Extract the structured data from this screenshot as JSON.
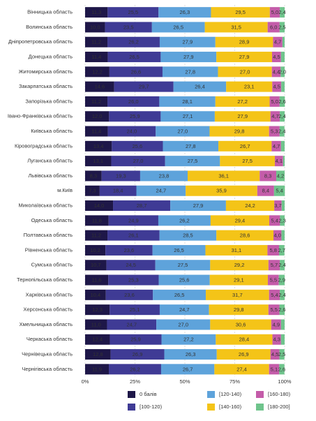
{
  "chart_data": {
    "type": "stacked-barh",
    "categories": [
      "Вінницька область",
      "Волинська область",
      "Дніпропетровська область",
      "Донецька область",
      "Житомирська область",
      "Закарпатська область",
      "Запорізька область",
      "Івано-Франківська область",
      "Київська область",
      "Кіровоградська область",
      "Луганська область",
      "Львівська область",
      "м.Київ",
      "Миколаївська область",
      "Одеська область",
      "Полтавська область",
      "Рівненська область",
      "Сумська область",
      "Тернопільська область",
      "Харківська область",
      "Херсонська область",
      "Хмельницька область",
      "Черкаська область",
      "Чернівецька область",
      "Чернігівська область"
    ],
    "series": [
      {
        "name": "0 балів",
        "color": "#1e1748",
        "values": [
          11.3,
          10.0,
          11.2,
          11.4,
          12.2,
          14.6,
          11.2,
          12.0,
          11.4,
          13.4,
          13.1,
          8.3,
          7.3,
          14.0,
          11.8,
          11.2,
          10.2,
          10.7,
          11.6,
          10.4,
          12.3,
          11.0,
          12.4,
          12.8,
          11.9
        ],
        "value_labels": [
          "11,3",
          "10,0",
          "11,2",
          "11,4",
          "12,2",
          "14,6",
          "11,2",
          "12,0",
          "11,4",
          "13,4",
          "13,1",
          "8,3",
          "7,3",
          "14,0",
          "11,8",
          "11,2",
          "10,2",
          "10,7",
          "11,6",
          "10,4",
          "12,3",
          "11,0",
          "12,4",
          "12,8",
          "11,9"
        ]
      },
      {
        "name": "[100-120)",
        "color": "#3f3b95",
        "values": [
          25.5,
          23.5,
          26.2,
          26.5,
          26.6,
          29.7,
          26.0,
          25.9,
          24.0,
          25.6,
          27.0,
          19.3,
          18.4,
          28.7,
          24.9,
          26.1,
          23.6,
          24.5,
          25.3,
          23.6,
          25.1,
          24.7,
          25.9,
          26.9,
          26.2
        ],
        "value_labels": [
          "25,5",
          "23,5",
          "26,2",
          "26,5",
          "26,6",
          "29,7",
          "26,0",
          "25,9",
          "24,0",
          "25,6",
          "27,0",
          "19,3",
          "18,4",
          "28,7",
          "24,9",
          "26,1",
          "23,6",
          "24,5",
          "25,3",
          "23,6",
          "25,1",
          "24,7",
          "25,9",
          "26,9",
          "26,2"
        ]
      },
      {
        "name": "[120-140)",
        "color": "#5ea3db",
        "values": [
          26.3,
          26.5,
          27.9,
          27.9,
          27.8,
          26.4,
          28.1,
          27.1,
          27.0,
          27.8,
          27.5,
          23.8,
          24.7,
          27.9,
          26.2,
          28.5,
          26.5,
          27.5,
          25.6,
          26.5,
          24.7,
          27.0,
          27.2,
          26.3,
          26.7
        ],
        "value_labels": [
          "26,3",
          "26,5",
          "27,9",
          "27,9",
          "27,8",
          "26,4",
          "28,1",
          "27,1",
          "27,0",
          "27,8",
          "27,5",
          "23,8",
          "24,7",
          "27,9",
          "26,2",
          "28,5",
          "26,5",
          "27,5",
          "25,6",
          "26,5",
          "24,7",
          "27,0",
          "27,2",
          "26,3",
          "26,7"
        ]
      },
      {
        "name": "[140-160)",
        "color": "#f4c418",
        "values": [
          29.5,
          31.5,
          28.9,
          27.9,
          27.0,
          23.1,
          27.2,
          27.9,
          29.8,
          26.7,
          27.5,
          36.1,
          35.9,
          24.2,
          29.4,
          28.6,
          31.1,
          29.2,
          29.1,
          31.7,
          29.8,
          30.6,
          28.4,
          26.9,
          27.4
        ],
        "value_labels": [
          "29,5",
          "31,5",
          "28,9",
          "27,9",
          "27,0",
          "23,1",
          "27,2",
          "27,9",
          "29,8",
          "26,7",
          "27,5",
          "36,1",
          "35,9",
          "24,2",
          "29,4",
          "28,6",
          "31,1",
          "29,2",
          "29,1",
          "31,7",
          "29,8",
          "30,6",
          "28,4",
          "26,9",
          "27,4"
        ]
      },
      {
        "name": "[160-180)",
        "color": "#c45ca9",
        "values": [
          5.0,
          6.0,
          4.7,
          4.5,
          4.4,
          4.5,
          5.0,
          4.7,
          5.3,
          4.7,
          4.1,
          8.3,
          8.4,
          3.7,
          5.4,
          4.0,
          5.8,
          5.7,
          5.5,
          5.4,
          5.5,
          4.9,
          4.3,
          4.5,
          5.1
        ],
        "value_labels": [
          "5,0",
          "6,0",
          "4,7",
          "4,5",
          "4,4",
          "4,5",
          "5,0",
          "4,7",
          "5,3",
          "4,7",
          "4,1",
          "8,3",
          "8,4",
          "3,7",
          "5,4",
          "4,0",
          "5,8",
          "5,7",
          "5,5",
          "5,4",
          "5,5",
          "4,9",
          "4,3",
          "4,5",
          "5,1"
        ]
      },
      {
        "name": "[180-200]",
        "color": "#6fc48c",
        "values": [
          2.4,
          2.5,
          1.1,
          1.8,
          2.0,
          1.7,
          2.6,
          2.4,
          2.4,
          1.8,
          0.8,
          4.2,
          5.4,
          1.5,
          2.3,
          1.6,
          2.7,
          2.4,
          2.9,
          2.4,
          2.6,
          1.8,
          1.8,
          2.5,
          2.6
        ],
        "value_labels": [
          "2,4",
          "2,5",
          null,
          null,
          "2,0",
          null,
          "2,6",
          "2,4",
          "2,4",
          null,
          null,
          "4,2",
          "5,4",
          null,
          "2,3",
          null,
          "2,7",
          "2,4",
          "2,9",
          "2,4",
          "2,6",
          null,
          null,
          "2,5",
          "2,6"
        ]
      }
    ],
    "xlim": [
      0,
      100
    ],
    "xticks": [
      {
        "value": 0,
        "label": "0%"
      },
      {
        "value": 25,
        "label": "25%"
      },
      {
        "value": 50,
        "label": "50%"
      },
      {
        "value": 75,
        "label": "75%"
      },
      {
        "value": 100,
        "label": "100%"
      }
    ],
    "grid": true
  }
}
